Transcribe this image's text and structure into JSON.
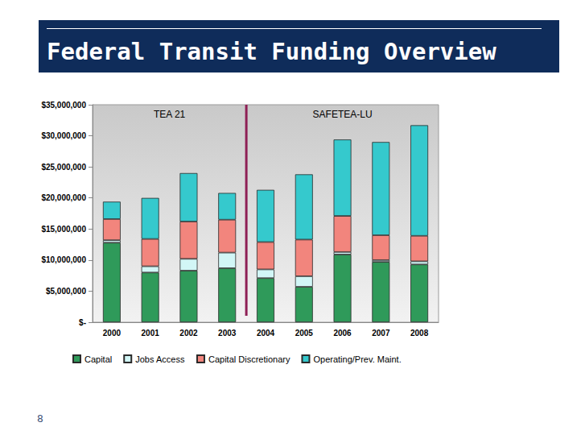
{
  "title": "Federal Transit Funding Overview",
  "page_number": "8",
  "chart_data": {
    "type": "bar",
    "stacked": true,
    "categories": [
      "2000",
      "2001",
      "2002",
      "2003",
      "2004",
      "2005",
      "2006",
      "2007",
      "2008"
    ],
    "series": [
      {
        "name": "Capital",
        "color": "#2f9a5a",
        "values": [
          12800000,
          8000000,
          8300000,
          8700000,
          7100000,
          5700000,
          10900000,
          9700000,
          9300000
        ]
      },
      {
        "name": "Jobs Access",
        "color": "#d2f6f6",
        "values": [
          400000,
          1000000,
          1900000,
          2500000,
          1400000,
          1700000,
          400000,
          300000,
          500000
        ]
      },
      {
        "name": "Capital Discretionary",
        "color": "#f2857d",
        "values": [
          3400000,
          4400000,
          6000000,
          5300000,
          4400000,
          5900000,
          5800000,
          4000000,
          4100000
        ]
      },
      {
        "name": "Operating/Prev. Maint.",
        "color": "#35c9cd",
        "values": [
          2800000,
          6600000,
          7800000,
          4300000,
          8400000,
          10500000,
          12300000,
          15000000,
          17800000
        ]
      }
    ],
    "ylim": [
      0,
      35000000
    ],
    "yticks": [
      {
        "value": 0,
        "label": "$-"
      },
      {
        "value": 5000000,
        "label": "$5,000,000"
      },
      {
        "value": 10000000,
        "label": "$10,000,000"
      },
      {
        "value": 15000000,
        "label": "$15,000,000"
      },
      {
        "value": 20000000,
        "label": "$20,000,000"
      },
      {
        "value": 25000000,
        "label": "$25,000,000"
      },
      {
        "value": 30000000,
        "label": "$30,000,000"
      },
      {
        "value": 35000000,
        "label": "$35,000,000"
      }
    ],
    "grid": false,
    "legend": "bottom",
    "annotations": [
      {
        "text": "TEA 21",
        "from": "2000",
        "to": "2003"
      },
      {
        "text": "SAFETEA-LU",
        "from": "2004",
        "to": "2008"
      }
    ]
  }
}
